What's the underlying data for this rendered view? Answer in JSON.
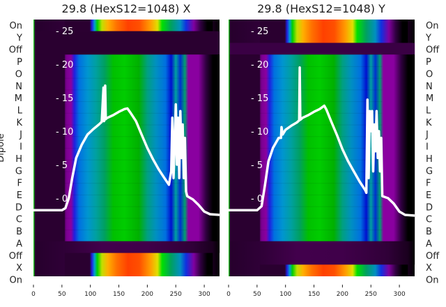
{
  "chart_data": [
    {
      "type": "heatmap",
      "title": "29.8 (HexS12=1048) X",
      "ylabel": "Dipole",
      "row_labels": [
        "On",
        "Y",
        "Off",
        "P",
        "O",
        "N",
        "M",
        "L",
        "K",
        "J",
        "I",
        "H",
        "G",
        "F",
        "E",
        "D",
        "C",
        "B",
        "A",
        "Off",
        "X",
        "On"
      ],
      "xticks": [
        0,
        50,
        100,
        150,
        200,
        250,
        300
      ],
      "xlim": [
        0,
        327
      ],
      "overlay_yticks": [
        0,
        5,
        10,
        15,
        20,
        25
      ],
      "overlay_ylim": [
        -11.9,
        26.5
      ],
      "overlay_line": {
        "x": [
          0,
          50,
          56,
          62,
          68,
          75,
          85,
          95,
          105,
          115,
          120,
          123,
          124,
          125,
          126,
          127,
          128,
          130,
          140,
          150,
          160,
          165,
          170,
          180,
          190,
          200,
          210,
          220,
          230,
          238,
          242,
          244,
          246,
          248,
          250,
          252,
          254,
          256,
          258,
          260,
          262,
          264,
          266,
          268,
          270,
          280,
          290,
          300,
          310,
          327
        ],
        "y": [
          -1.8,
          -1.8,
          -1.5,
          0,
          3,
          6,
          8,
          9.5,
          10.3,
          11,
          11.4,
          16.5,
          11.5,
          11.7,
          16.8,
          11.8,
          11.9,
          12,
          12.4,
          12.9,
          13.3,
          13.4,
          12.8,
          11.5,
          9.5,
          7.5,
          5.8,
          4.3,
          3,
          2,
          4,
          12,
          3,
          8,
          14,
          5,
          12,
          3,
          13,
          6,
          11,
          3,
          9,
          1,
          0.3,
          -0.2,
          -1,
          -2,
          -2.4,
          -2.5
        ]
      }
    },
    {
      "type": "heatmap",
      "title": "29.8 (HexS12=1048) Y",
      "ylabel": "",
      "row_labels": [
        "On",
        "Y",
        "Off",
        "P",
        "O",
        "N",
        "M",
        "L",
        "K",
        "J",
        "I",
        "H",
        "G",
        "F",
        "E",
        "D",
        "C",
        "B",
        "A",
        "Off",
        "X",
        "On"
      ],
      "xticks": [
        0,
        50,
        100,
        150,
        200,
        250,
        300
      ],
      "xlim": [
        0,
        327
      ],
      "overlay_yticks": [
        0,
        5,
        10,
        15,
        20,
        25
      ],
      "overlay_ylim": [
        -11.9,
        26.5
      ],
      "overlay_line": {
        "x": [
          0,
          50,
          58,
          64,
          70,
          78,
          88,
          92,
          93,
          95,
          100,
          110,
          120,
          124,
          125,
          126,
          130,
          140,
          150,
          160,
          168,
          172,
          180,
          190,
          200,
          210,
          220,
          230,
          240,
          242,
          244,
          246,
          248,
          250,
          252,
          254,
          256,
          258,
          260,
          262,
          264,
          266,
          268,
          270,
          280,
          290,
          300,
          310,
          327
        ],
        "y": [
          -1.8,
          -1.8,
          -1.2,
          2,
          5.5,
          7.5,
          9,
          9,
          10.6,
          9.5,
          10.2,
          10.8,
          11.3,
          11.6,
          19.5,
          11.7,
          12,
          12.4,
          12.9,
          13.3,
          13.8,
          13.2,
          11.5,
          9.5,
          7.3,
          5.5,
          4,
          2.5,
          1.2,
          0.8,
          14.7,
          3,
          13,
          10,
          13,
          4,
          11,
          7,
          13,
          6,
          10,
          4,
          9,
          0.3,
          0,
          -0.8,
          -2,
          -2.5,
          -2.6
        ]
      }
    }
  ]
}
